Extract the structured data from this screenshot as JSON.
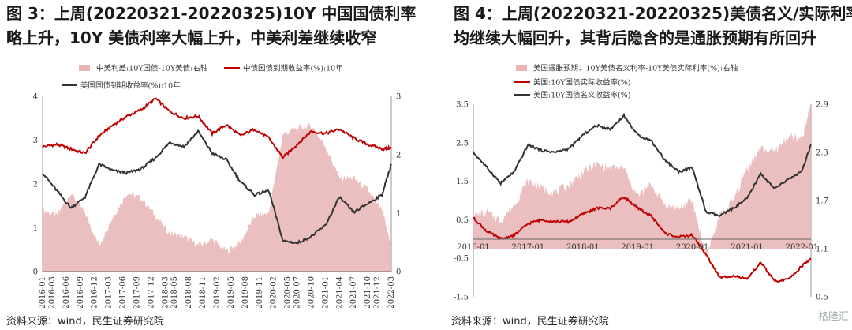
{
  "fig1": {
    "title_line1": "图 3：上周(20220321-20220325)10Y 中国国债利率",
    "title_line2": "略上升，10Y 美债利率大幅上升，中美利差继续收窄",
    "source": "资料来源：wind，民生证券研究院"
  },
  "fig2": {
    "title_line1": "图 4：上周(20220321-20220325)美债名义/实际利率",
    "title_line2": "均继续大幅回升，其背后隐含的是通胀预期有所回升",
    "source": "资料来源：wind，民生证券研究院"
  },
  "watermark": "格隆汇",
  "chart_data": [
    {
      "type": "line",
      "legend": [
        "中美利差:10Y国债-10Y美债:右轴",
        "中债国债到期收益率(%):10年",
        "美国国债到期收益率(%):10年"
      ],
      "colors": {
        "spread": "#e8b4b4",
        "china": "#c00000",
        "us": "#333333"
      },
      "x_ticks": [
        "2016-01",
        "2016-03",
        "2016-06",
        "2016-09",
        "2016-12",
        "2017-03",
        "2017-06",
        "2017-09",
        "2017-12",
        "2018-03",
        "2018-05",
        "2018-08",
        "2018-11",
        "2019-02",
        "2019-05",
        "2019-08",
        "2019-11",
        "2020-02",
        "2020-05",
        "2020-07",
        "2020-10",
        "2021-01",
        "2021-04",
        "2021-07",
        "2021-10",
        "2021-12",
        "2022-03"
      ],
      "y_left_ticks": [
        "0",
        "1",
        "2",
        "3",
        "4"
      ],
      "y_right_ticks": [
        "0",
        "1",
        "2",
        "3"
      ],
      "ylim_left": [
        0,
        4
      ],
      "ylim_right": [
        0,
        3
      ],
      "x": [
        "2016-01",
        "2016-04",
        "2016-07",
        "2016-10",
        "2017-01",
        "2017-04",
        "2017-07",
        "2017-10",
        "2018-01",
        "2018-04",
        "2018-07",
        "2018-10",
        "2019-01",
        "2019-04",
        "2019-07",
        "2019-10",
        "2020-01",
        "2020-04",
        "2020-07",
        "2020-10",
        "2021-01",
        "2021-04",
        "2021-07",
        "2021-10",
        "2022-01",
        "2022-03"
      ],
      "series": [
        {
          "key": "spread",
          "axis": "right",
          "values": [
            1.05,
            0.95,
            1.35,
            1.0,
            0.45,
            0.95,
            1.35,
            1.25,
            0.95,
            0.65,
            0.6,
            0.45,
            0.55,
            0.35,
            0.5,
            0.95,
            1.0,
            2.35,
            2.45,
            2.5,
            2.15,
            1.6,
            1.6,
            1.4,
            1.05,
            0.45
          ]
        },
        {
          "key": "china",
          "axis": "left",
          "values": [
            2.85,
            2.9,
            2.8,
            2.7,
            3.1,
            3.35,
            3.55,
            3.7,
            3.95,
            3.65,
            3.5,
            3.55,
            3.15,
            3.35,
            3.1,
            3.25,
            3.05,
            2.6,
            2.9,
            3.2,
            3.15,
            3.25,
            3.05,
            2.9,
            2.8,
            2.82
          ]
        },
        {
          "key": "us",
          "axis": "left",
          "values": [
            2.25,
            1.85,
            1.45,
            1.7,
            2.45,
            2.3,
            2.25,
            2.35,
            2.6,
            2.95,
            2.85,
            3.2,
            2.7,
            2.55,
            2.05,
            1.75,
            1.85,
            0.7,
            0.65,
            0.8,
            1.05,
            1.7,
            1.35,
            1.55,
            1.75,
            2.45
          ]
        }
      ]
    },
    {
      "type": "line",
      "legend": [
        "美国通胀预期：10Y美债名义利率-10Y美债实际利率(%):右轴",
        "美国:10Y国债实际收益率(%)",
        "美国:10Y国债名义收益率(%)"
      ],
      "colors": {
        "breakeven": "#e8b4b4",
        "real": "#c00000",
        "nominal": "#333333"
      },
      "x_ticks": [
        "2016-01",
        "2017-01",
        "2018-01",
        "2019-01",
        "2020-01",
        "2021-01",
        "2022-01"
      ],
      "y_left_ticks": [
        "-1.5",
        "-0.5",
        "0.5",
        "1.5",
        "2.5",
        "3.5"
      ],
      "y_right_ticks": [
        "0.5",
        "1.1",
        "1.7",
        "2.3",
        "2.9"
      ],
      "ylim_left": [
        -1.5,
        3.5
      ],
      "ylim_right": [
        0.5,
        2.9
      ],
      "x": [
        "2016-01",
        "2016-04",
        "2016-07",
        "2016-10",
        "2017-01",
        "2017-04",
        "2017-07",
        "2017-10",
        "2018-01",
        "2018-04",
        "2018-07",
        "2018-10",
        "2019-01",
        "2019-04",
        "2019-07",
        "2019-10",
        "2020-01",
        "2020-04",
        "2020-07",
        "2020-10",
        "2021-01",
        "2021-04",
        "2021-07",
        "2021-10",
        "2022-01",
        "2022-03"
      ],
      "series": [
        {
          "key": "breakeven",
          "axis": "right",
          "values": [
            1.5,
            1.55,
            1.45,
            1.65,
            1.95,
            1.85,
            1.8,
            1.9,
            2.05,
            2.15,
            2.1,
            2.1,
            1.75,
            1.9,
            1.65,
            1.6,
            1.7,
            1.0,
            1.5,
            1.7,
            2.1,
            2.35,
            2.3,
            2.5,
            2.45,
            2.9
          ]
        },
        {
          "key": "real",
          "axis": "left",
          "values": [
            0.55,
            0.2,
            0.0,
            0.1,
            0.4,
            0.5,
            0.45,
            0.45,
            0.65,
            0.8,
            0.8,
            1.1,
            0.8,
            0.6,
            0.15,
            0.05,
            0.1,
            -0.4,
            -1.0,
            -0.95,
            -1.05,
            -0.6,
            -1.1,
            -1.05,
            -0.7,
            -0.5
          ]
        },
        {
          "key": "nominal",
          "axis": "left",
          "values": [
            2.25,
            1.85,
            1.45,
            1.75,
            2.45,
            2.3,
            2.25,
            2.35,
            2.7,
            2.95,
            2.85,
            3.2,
            2.7,
            2.55,
            2.05,
            1.75,
            1.85,
            0.7,
            0.6,
            0.8,
            1.05,
            1.7,
            1.3,
            1.55,
            1.75,
            2.45
          ]
        }
      ]
    }
  ]
}
